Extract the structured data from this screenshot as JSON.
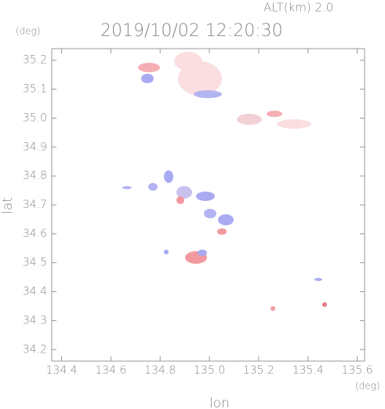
{
  "chart_data": {
    "type": "map",
    "title": "2019/10/02 12:20:30",
    "subtitle": "ALT(km) 2.0",
    "x_label": "lon",
    "x_unit": "(deg)",
    "y_label": "lat",
    "y_unit": "(deg)",
    "xlim": [
      134.36,
      135.63
    ],
    "xticks": [
      134.4,
      134.6,
      134.8,
      {
        "value": 135.0,
        "label": "135.0"
      },
      135.2,
      135.4,
      135.6
    ],
    "ylim": [
      34.16,
      35.24
    ],
    "yticks": [
      34.2,
      34.3,
      34.4,
      34.5,
      34.6,
      34.7,
      34.8,
      34.9,
      {
        "value": 35.0,
        "label": "35.0"
      },
      35.1,
      35.2
    ]
  }
}
